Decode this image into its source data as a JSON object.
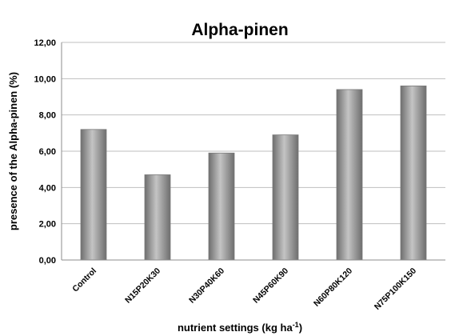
{
  "chart_data": {
    "type": "bar",
    "title": "Alpha-pinen",
    "xlabel": "nutrient settings (kg ha",
    "xlabel_unit_sup": "-1",
    "xlabel_close": ")",
    "ylabel": "presence of the Alpha-pinen (%)",
    "categories": [
      "Control",
      "N15P20K30",
      "N30P40K60",
      "N45P60K90",
      "N60P80K120",
      "N75P100K150"
    ],
    "values": [
      7.2,
      4.7,
      5.9,
      6.9,
      9.4,
      9.6
    ],
    "ylim": [
      0,
      12
    ],
    "yticks": [
      "0,00",
      "2,00",
      "4,00",
      "6,00",
      "8,00",
      "10,00",
      "12,00"
    ],
    "grid": true,
    "legend": "none",
    "colors": {
      "bar_dark": "#6e6e6e",
      "bar_light": "#c4c4c4",
      "bar_mid": "#9a9a9a",
      "grid": "#bfbfbf",
      "axis": "#8c8c8c"
    }
  }
}
